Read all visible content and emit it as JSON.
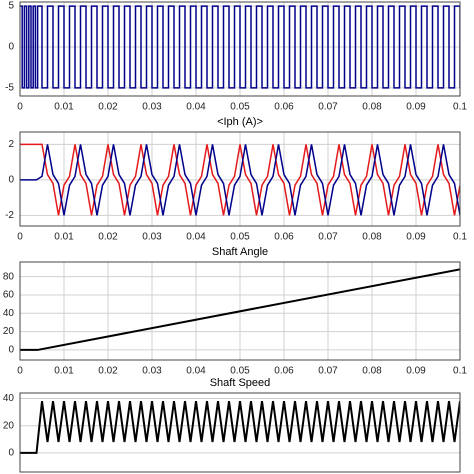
{
  "chart_data": [
    {
      "type": "line",
      "step": true,
      "xlim": [
        0,
        0.1
      ],
      "xticks": [
        0,
        0.01,
        0.02,
        0.03,
        0.04,
        0.05,
        0.06,
        0.07,
        0.08,
        0.09,
        0.1
      ],
      "ylim": [
        -6,
        5.5
      ],
      "yticks": [
        -5,
        0,
        5
      ],
      "grid": true,
      "x": [
        0,
        0.0005,
        0.001,
        0.0015,
        0.002,
        0.0025,
        0.003,
        0.0035,
        0.004,
        0.005,
        0.00625,
        0.0075,
        0.00875,
        0.01,
        0.01125,
        0.0125,
        0.01375,
        0.015,
        0.01625,
        0.0175,
        0.01875,
        0.02,
        0.02125,
        0.0225,
        0.02375,
        0.025,
        0.02625,
        0.0275,
        0.02875,
        0.03,
        0.03125,
        0.0325,
        0.03375,
        0.035,
        0.03625,
        0.0375,
        0.03875,
        0.04,
        0.04125,
        0.0425,
        0.04375,
        0.045,
        0.04625,
        0.0475,
        0.04875,
        0.05,
        0.05125,
        0.0525,
        0.05375,
        0.055,
        0.05625,
        0.0575,
        0.05875,
        0.06,
        0.06125,
        0.0625,
        0.06375,
        0.065,
        0.06625,
        0.0675,
        0.06875,
        0.07,
        0.07125,
        0.0725,
        0.07375,
        0.075,
        0.07625,
        0.0775,
        0.07875,
        0.08,
        0.08125,
        0.0825,
        0.08375,
        0.085,
        0.08625,
        0.0875,
        0.08875,
        0.09,
        0.09125,
        0.0925,
        0.09375,
        0.095,
        0.09625,
        0.0975,
        0.09875,
        0.1
      ],
      "series": [
        {
          "color": "#00008b",
          "values": [
            5,
            -5,
            5,
            -5,
            5,
            -5,
            5,
            -5,
            5,
            -5,
            5,
            -5,
            5,
            -5,
            5,
            -5,
            5,
            -5,
            5,
            -5,
            5,
            -5,
            5,
            -5,
            5,
            -5,
            5,
            -5,
            5,
            -5,
            5,
            -5,
            5,
            -5,
            5,
            -5,
            5,
            -5,
            5,
            -5,
            5,
            -5,
            5,
            -5,
            5,
            -5,
            5,
            -5,
            5,
            -5,
            5,
            -5,
            5,
            -5,
            5,
            -5,
            5,
            -5,
            5,
            -5,
            5,
            -5,
            5,
            -5,
            5,
            -5,
            5,
            -5,
            5,
            -5,
            5,
            -5,
            5,
            -5,
            5,
            -5,
            5,
            -5,
            5,
            -5,
            5,
            -5,
            5,
            -5,
            5,
            -5
          ]
        }
      ]
    },
    {
      "type": "line",
      "title": "<Iph (A)>",
      "xlim": [
        0,
        0.1
      ],
      "xticks": [
        0,
        0.01,
        0.02,
        0.03,
        0.04,
        0.05,
        0.06,
        0.07,
        0.08,
        0.09,
        0.1
      ],
      "ylim": [
        -2.6,
        2.7
      ],
      "yticks": [
        -2,
        0,
        2
      ],
      "grid": true,
      "x": [
        0,
        0.00125,
        0.0025,
        0.00375,
        0.005,
        0.00625,
        0.0075,
        0.00875,
        0.01,
        0.01125,
        0.0125,
        0.01375,
        0.015,
        0.01625,
        0.0175,
        0.01875,
        0.02,
        0.02125,
        0.0225,
        0.02375,
        0.025,
        0.02625,
        0.0275,
        0.02875,
        0.03,
        0.03125,
        0.0325,
        0.03375,
        0.035,
        0.03625,
        0.0375,
        0.03875,
        0.04,
        0.04125,
        0.0425,
        0.04375,
        0.045,
        0.04625,
        0.0475,
        0.04875,
        0.05,
        0.05125,
        0.0525,
        0.05375,
        0.055,
        0.05625,
        0.0575,
        0.05875,
        0.06,
        0.06125,
        0.0625,
        0.06375,
        0.065,
        0.06625,
        0.0675,
        0.06875,
        0.07,
        0.07125,
        0.0725,
        0.07375,
        0.075,
        0.07625,
        0.0775,
        0.07875,
        0.08,
        0.08125,
        0.0825,
        0.08375,
        0.085,
        0.08625,
        0.0875,
        0.08875,
        0.09,
        0.09125,
        0.0925,
        0.09375,
        0.095,
        0.09625,
        0.0975,
        0.09875,
        0.1
      ],
      "series": [
        {
          "color": "#e41a1c",
          "values": [
            2,
            2,
            2,
            2,
            2,
            0.3,
            -0.2,
            -2,
            -0.3,
            0.2,
            2,
            0.3,
            -0.2,
            -2,
            -0.3,
            0.2,
            2,
            0.3,
            -0.2,
            -2,
            -0.3,
            0.2,
            2,
            0.3,
            -0.2,
            -2,
            -0.3,
            0.2,
            2,
            0.3,
            -0.2,
            -2,
            -0.3,
            0.2,
            2,
            0.3,
            -0.2,
            -2,
            -0.3,
            0.2,
            2,
            0.3,
            -0.2,
            -2,
            -0.3,
            0.2,
            2,
            0.3,
            -0.2,
            -2,
            -0.3,
            0.2,
            2,
            0.3,
            -0.2,
            -2,
            -0.3,
            0.2,
            2,
            0.3,
            -0.2,
            -2,
            -0.3,
            0.2,
            2,
            0.3,
            -0.2,
            -2,
            -0.3,
            0.2,
            2,
            0.3,
            -0.2,
            -2,
            -0.3,
            0.2,
            2,
            0.3,
            -0.2,
            -2,
            -0.3
          ]
        },
        {
          "color": "#00008b",
          "values": [
            0,
            0,
            0,
            0,
            0.2,
            2,
            0.3,
            -0.2,
            -2,
            -0.3,
            0.2,
            2,
            0.3,
            -0.2,
            -2,
            -0.3,
            0.2,
            2,
            0.3,
            -0.2,
            -2,
            -0.3,
            0.2,
            2,
            0.3,
            -0.2,
            -2,
            -0.3,
            0.2,
            2,
            0.3,
            -0.2,
            -2,
            -0.3,
            0.2,
            2,
            0.3,
            -0.2,
            -2,
            -0.3,
            0.2,
            2,
            0.3,
            -0.2,
            -2,
            -0.3,
            0.2,
            2,
            0.3,
            -0.2,
            -2,
            -0.3,
            0.2,
            2,
            0.3,
            -0.2,
            -2,
            -0.3,
            0.2,
            2,
            0.3,
            -0.2,
            -2,
            -0.3,
            0.2,
            2,
            0.3,
            -0.2,
            -2,
            -0.3,
            0.2,
            2,
            0.3,
            -0.2,
            -2,
            -0.3,
            0.2,
            2,
            0.3,
            -0.2,
            -2
          ]
        }
      ]
    },
    {
      "type": "line",
      "title": "Shaft Angle",
      "xlim": [
        0,
        0.1
      ],
      "xticks": [
        0,
        0.01,
        0.02,
        0.03,
        0.04,
        0.05,
        0.06,
        0.07,
        0.08,
        0.09,
        0.1
      ],
      "ylim": [
        -11,
        96
      ],
      "yticks": [
        0,
        20,
        40,
        60,
        80
      ],
      "grid": true,
      "x": [
        0,
        0.004,
        0.1
      ],
      "series": [
        {
          "color": "#000000",
          "values": [
            0,
            0,
            88
          ]
        }
      ]
    },
    {
      "type": "line",
      "title": "Shaft Speed",
      "xlim": [
        0,
        0.1
      ],
      "ylim": [
        -14,
        44
      ],
      "yticks": [
        0,
        20,
        40
      ],
      "grid": true,
      "x": [
        0,
        0.00125,
        0.0025,
        0.00375,
        0.005,
        0.00625,
        0.0075,
        0.00875,
        0.01,
        0.01125,
        0.0125,
        0.01375,
        0.015,
        0.01625,
        0.0175,
        0.01875,
        0.02,
        0.02125,
        0.0225,
        0.02375,
        0.025,
        0.02625,
        0.0275,
        0.02875,
        0.03,
        0.03125,
        0.0325,
        0.03375,
        0.035,
        0.03625,
        0.0375,
        0.03875,
        0.04,
        0.04125,
        0.0425,
        0.04375,
        0.045,
        0.04625,
        0.0475,
        0.04875,
        0.05,
        0.05125,
        0.0525,
        0.05375,
        0.055,
        0.05625,
        0.0575,
        0.05875,
        0.06,
        0.06125,
        0.0625,
        0.06375,
        0.065,
        0.06625,
        0.0675,
        0.06875,
        0.07,
        0.07125,
        0.0725,
        0.07375,
        0.075,
        0.07625,
        0.0775,
        0.07875,
        0.08,
        0.08125,
        0.0825,
        0.08375,
        0.085,
        0.08625,
        0.0875,
        0.08875,
        0.09,
        0.09125,
        0.0925,
        0.09375,
        0.095,
        0.09625,
        0.0975,
        0.09875,
        0.1
      ],
      "series": [
        {
          "color": "#000000",
          "values": [
            0,
            0,
            0,
            0,
            38,
            8,
            38,
            8,
            38,
            8,
            38,
            8,
            38,
            8,
            38,
            8,
            38,
            8,
            38,
            8,
            38,
            8,
            38,
            8,
            38,
            8,
            38,
            8,
            38,
            8,
            38,
            8,
            38,
            8,
            38,
            8,
            38,
            8,
            38,
            8,
            38,
            8,
            38,
            8,
            38,
            8,
            38,
            8,
            38,
            8,
            38,
            8,
            38,
            8,
            38,
            8,
            38,
            8,
            38,
            8,
            38,
            8,
            38,
            8,
            38,
            8,
            38,
            8,
            38,
            8,
            38,
            8,
            38,
            8,
            38,
            8,
            38,
            8,
            38,
            8,
            38
          ]
        }
      ]
    }
  ]
}
